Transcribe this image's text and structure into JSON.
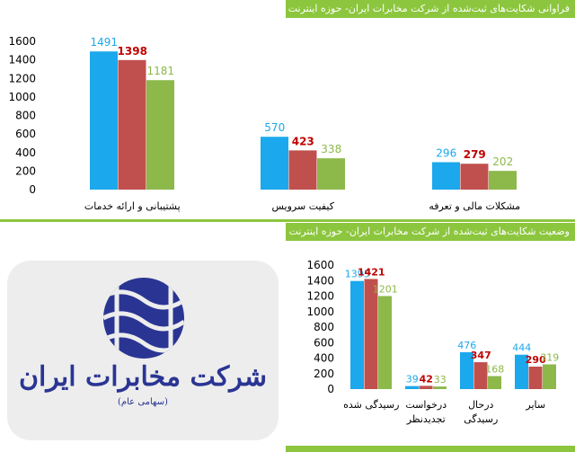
{
  "headers": {
    "top": "فراوانی شکایت‌های ثبت‌شده از شرکت مخابرات ایران- حوزه اینترنت",
    "bottom": "وضعیت شکایت‌های ثبت‌شده از شرکت مخابرات ایران- حوزه اینترنت"
  },
  "logo": {
    "name": "شرکت مخابرات ایران",
    "subtitle": "(سهامی عام)"
  },
  "colors": {
    "band": "#8cc63e",
    "series": [
      "#1ca8ec",
      "#c0504d",
      "#8db84a"
    ],
    "labels": [
      "#1ca8ec",
      "#c00000",
      "#8db84a"
    ]
  },
  "chart_data": [
    {
      "type": "bar",
      "title": "فراوانی شکایت‌های ثبت‌شده از شرکت مخابرات ایران- حوزه اینترنت",
      "categories": [
        "پشتیبانی و ارائه خدمات",
        "کیفیت سرویس",
        "مشکلات مالی و تعرفه"
      ],
      "series": [
        {
          "values": [
            1491,
            570,
            296
          ]
        },
        {
          "values": [
            1398,
            423,
            279
          ]
        },
        {
          "values": [
            1181,
            338,
            202
          ]
        }
      ],
      "yticks": [
        0,
        200,
        400,
        600,
        800,
        1000,
        1200,
        1400,
        1600
      ],
      "ylim": [
        0,
        1600
      ],
      "grid": false,
      "legend": "none"
    },
    {
      "type": "bar",
      "title": "وضعیت شکایت‌های ثبت‌شده از شرکت مخابرات ایران- حوزه اینترنت",
      "categories": [
        [
          "رسیدگی شده"
        ],
        [
          "درخواست",
          "تجدیدنظر"
        ],
        [
          "درحال",
          "رسیدگی"
        ],
        [
          "سایر"
        ]
      ],
      "series": [
        {
          "values": [
            1395,
            39,
            476,
            444
          ]
        },
        {
          "values": [
            1421,
            42,
            347,
            290
          ]
        },
        {
          "values": [
            1201,
            33,
            168,
            319
          ]
        }
      ],
      "yticks": [
        0,
        200,
        400,
        600,
        800,
        1000,
        1200,
        1400,
        1600
      ],
      "ylim": [
        0,
        1600
      ],
      "grid": false,
      "legend": "none"
    }
  ]
}
